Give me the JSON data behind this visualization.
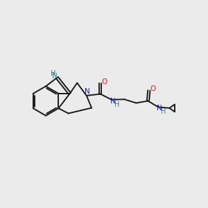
{
  "bg_color": "#ebebeb",
  "bond_color": "#1a1a1a",
  "N_color": "#1414ff",
  "O_color": "#ff1414",
  "NH_color": "#2a8080",
  "line_width": 1.4,
  "figsize": [
    3.0,
    3.0
  ],
  "dpi": 100,
  "xlim": [
    0,
    10
  ],
  "ylim": [
    0,
    10
  ]
}
